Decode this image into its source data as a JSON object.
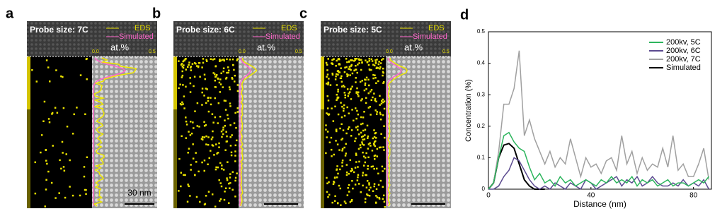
{
  "panels": [
    {
      "label": "a",
      "probe": "Probe size: 7C",
      "legend": [
        "EDS",
        "Simulated"
      ],
      "unit": "at.%",
      "scale": [
        "0.0",
        "0.5"
      ],
      "scalebar": "30 nm"
    },
    {
      "label": "b",
      "probe": "Probe size: 6C",
      "legend": [
        "EDS",
        "Simulated"
      ],
      "unit": "at.%",
      "scale": [
        "0.0",
        "0.5"
      ]
    },
    {
      "label": "c",
      "probe": "Probe size: 5C",
      "legend": [
        "EDS",
        "Simulated"
      ],
      "unit": "at.%",
      "scale": [
        "0.0",
        "0.5"
      ]
    }
  ],
  "chart_data": {
    "type": "line",
    "label": "d",
    "x_label": "Distance (nm)",
    "y_label": "Concentration (%)",
    "xlim": [
      0,
      87
    ],
    "xticks": [
      0,
      40,
      80
    ],
    "ylim": [
      0,
      0.5
    ],
    "yticks": [
      0.0,
      0.1,
      0.2,
      0.3,
      0.4,
      0.5
    ],
    "legend": "upper right",
    "x": [
      0,
      2,
      4,
      6,
      8,
      10,
      12,
      14,
      16,
      18,
      20,
      22,
      24,
      26,
      28,
      30,
      32,
      34,
      36,
      38,
      40,
      42,
      44,
      46,
      48,
      50,
      52,
      54,
      56,
      58,
      60,
      62,
      64,
      66,
      68,
      70,
      72,
      74,
      76,
      78,
      80,
      82,
      84,
      86
    ],
    "series": [
      {
        "name": "200kv, 5C",
        "color": "#2db55d",
        "values": [
          0,
          0.02,
          0.1,
          0.17,
          0.18,
          0.15,
          0.13,
          0.12,
          0.07,
          0.03,
          0.05,
          0.02,
          0.03,
          0.01,
          0.04,
          0.02,
          0.03,
          0.01,
          0.02,
          0.03,
          0.02,
          0.01,
          0.03,
          0.02,
          0.04,
          0.02,
          0.03,
          0.02,
          0.04,
          0.01,
          0.03,
          0.02,
          0.03,
          0.01,
          0.02,
          0.03,
          0.01,
          0.02,
          0.02,
          0.01,
          0.02,
          0.03,
          0.02,
          0.04
        ]
      },
      {
        "name": "200kv, 6C",
        "color": "#5b4a8f",
        "values": [
          0,
          0,
          0.01,
          0.04,
          0.06,
          0.1,
          0.09,
          0.06,
          0.03,
          0.01,
          0,
          0.01,
          0,
          0.02,
          0.01,
          0,
          0.02,
          0.01,
          0,
          0.03,
          0.02,
          0,
          0.01,
          0.02,
          0.03,
          0.04,
          0.01,
          0.03,
          0.02,
          0.04,
          0.01,
          0.02,
          0.04,
          0.02,
          0.01,
          0.01,
          0.02,
          0.01,
          0.03,
          0.01,
          0.02,
          0.01,
          0.03,
          0
        ]
      },
      {
        "name": "200kv, 7C",
        "color": "#a0a0a0",
        "values": [
          0,
          0.02,
          0.12,
          0.27,
          0.27,
          0.32,
          0.44,
          0.17,
          0.22,
          0.16,
          0.12,
          0.08,
          0.12,
          0.07,
          0.1,
          0.08,
          0.16,
          0.1,
          0.04,
          0.1,
          0.07,
          0.08,
          0.05,
          0.09,
          0.1,
          0.06,
          0.17,
          0.08,
          0.12,
          0.05,
          0.1,
          0.06,
          0.08,
          0.07,
          0.13,
          0.07,
          0.17,
          0.06,
          0.08,
          0.04,
          0.04,
          0.08,
          0.13,
          0.03
        ]
      },
      {
        "name": "Simulated",
        "color": "#000000",
        "values": [
          0,
          0.02,
          0.1,
          0.14,
          0.145,
          0.13,
          0.08,
          0.03,
          0.01,
          0,
          0,
          0,
          null,
          null,
          null,
          null,
          null,
          null,
          null,
          null,
          null,
          null,
          null,
          null,
          null,
          null,
          null,
          null,
          null,
          null,
          null,
          null,
          null,
          null,
          null,
          null,
          null,
          null,
          null,
          null,
          null,
          null,
          null,
          null
        ]
      }
    ]
  }
}
